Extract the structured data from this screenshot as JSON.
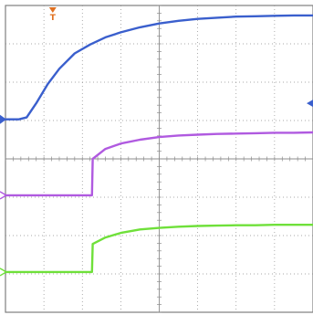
{
  "chart_data": {
    "type": "line",
    "title": "",
    "xlabel": "",
    "ylabel": "",
    "grid": true,
    "grid_divisions": {
      "x": 8,
      "y": 8
    },
    "xlim": [
      0,
      8
    ],
    "ylim": [
      0,
      8
    ],
    "trigger_marker": {
      "label": "T",
      "x": 1.23
    },
    "series": [
      {
        "color": "#3a5fcd",
        "marker": "left-arrow",
        "points": [
          [
            0.0,
            1.03
          ],
          [
            0.35,
            1.03
          ],
          [
            0.55,
            1.08
          ],
          [
            0.8,
            1.45
          ],
          [
            1.1,
            1.95
          ],
          [
            1.4,
            2.35
          ],
          [
            1.8,
            2.75
          ],
          [
            2.2,
            2.98
          ],
          [
            2.6,
            3.17
          ],
          [
            3.0,
            3.3
          ],
          [
            3.5,
            3.43
          ],
          [
            4.0,
            3.53
          ],
          [
            4.5,
            3.6
          ],
          [
            5.0,
            3.65
          ],
          [
            5.5,
            3.68
          ],
          [
            6.0,
            3.71
          ],
          [
            6.5,
            3.72
          ],
          [
            7.0,
            3.73
          ],
          [
            7.5,
            3.74
          ],
          [
            8.0,
            3.74
          ]
        ]
      },
      {
        "color": "#b05ae0",
        "marker": "right-arrow",
        "points": [
          [
            0.0,
            3.05
          ],
          [
            2.25,
            3.05
          ],
          [
            2.27,
            4.0
          ],
          [
            2.6,
            4.26
          ],
          [
            3.0,
            4.4
          ],
          [
            3.5,
            4.5
          ],
          [
            4.0,
            4.57
          ],
          [
            4.5,
            4.61
          ],
          [
            5.0,
            4.63
          ],
          [
            5.5,
            4.65
          ],
          [
            6.0,
            4.66
          ],
          [
            6.5,
            4.67
          ],
          [
            7.0,
            4.68
          ],
          [
            7.5,
            4.68
          ],
          [
            8.0,
            4.69
          ]
        ]
      },
      {
        "color": "#6fe03a",
        "marker": "right-arrow",
        "points": [
          [
            0.0,
            1.05
          ],
          [
            2.25,
            1.05
          ],
          [
            2.27,
            1.78
          ],
          [
            2.6,
            1.95
          ],
          [
            3.0,
            2.07
          ],
          [
            3.5,
            2.16
          ],
          [
            4.0,
            2.2
          ],
          [
            4.5,
            2.23
          ],
          [
            5.0,
            2.25
          ],
          [
            5.5,
            2.26
          ],
          [
            6.0,
            2.27
          ],
          [
            6.5,
            2.27
          ],
          [
            7.0,
            2.28
          ],
          [
            7.5,
            2.28
          ],
          [
            8.0,
            2.28
          ]
        ]
      }
    ],
    "offsets": [
      {
        "series": 0,
        "base": 4
      },
      {
        "series": 1,
        "base": 0
      },
      {
        "series": 2,
        "base": 0
      }
    ],
    "right_marker": {
      "color": "#3a5fcd",
      "y": 5.45
    },
    "colors": {
      "grid": "#8c8c8c",
      "frame": "#7f7f7f",
      "trigger": "#e07020"
    }
  }
}
